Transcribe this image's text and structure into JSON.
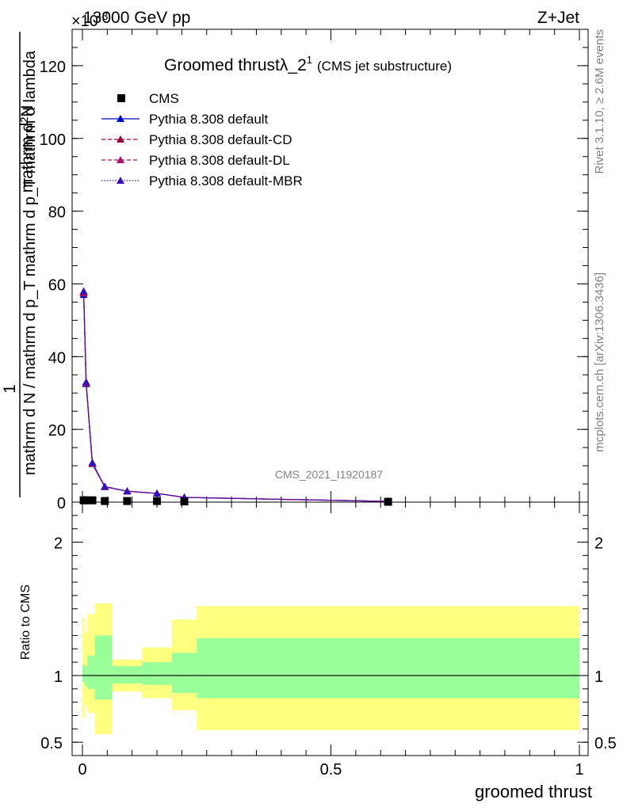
{
  "header": {
    "energy_label": "13000 GeV pp",
    "process_label": "Z+Jet",
    "exponent_label": "×10",
    "exponent_power": "-3"
  },
  "side_texts": {
    "rivet": "Rivet 3.1.10, ≥ 2.6M events",
    "mcplots": "mcplots.cern.ch [arXiv:1306.3436]"
  },
  "watermark": "CMS_2021_I1920187",
  "chart_data": [
    {
      "type": "line",
      "title": "Groomed thrust",
      "title_lambda": "λ_2",
      "title_sup": "1",
      "subtitle": "(CMS jet substructure)",
      "ylabel_num": "mathrm d²N",
      "ylabel_den": "mathrm d N / mathrm d p_T mathrm d p_T mathrm d lambda",
      "ylabel_one": "1",
      "xlim": [
        0,
        1
      ],
      "ylim": [
        0,
        130
      ],
      "yticks": [
        0,
        20,
        40,
        60,
        80,
        100,
        120
      ],
      "ytick_labels": [
        "0",
        "20",
        "40",
        "60",
        "80",
        "100",
        "120"
      ],
      "legend": [
        {
          "label": "CMS",
          "marker": "square",
          "color": "#000000",
          "dash": ""
        },
        {
          "label": "Pythia 8.308 default",
          "marker": "triangle",
          "color": "#0000cc",
          "dash": ""
        },
        {
          "label": "Pythia 8.308 default-CD",
          "marker": "triangle",
          "color": "#990033",
          "dash": "5,3"
        },
        {
          "label": "Pythia 8.308 default-DL",
          "marker": "triangle",
          "color": "#aa1166",
          "dash": "5,3"
        },
        {
          "label": "Pythia 8.308 default-MBR",
          "marker": "triangle",
          "color": "#3311bb",
          "dash": "1.5,2"
        }
      ],
      "cms_x": [
        0.0025,
        0.0075,
        0.02,
        0.045,
        0.09,
        0.15,
        0.205,
        0.615
      ],
      "cms_y": [
        0.5,
        0.5,
        0.5,
        0.3,
        0.3,
        0.3,
        0.2,
        0.1
      ],
      "mc_x": [
        0.0025,
        0.0075,
        0.02,
        0.045,
        0.09,
        0.15,
        0.205,
        0.615
      ],
      "series": [
        {
          "name": "Pythia 8.308 default",
          "values": [
            57.0,
            32.5,
            10.5,
            4.2,
            3.0,
            2.4,
            1.3,
            0.2
          ]
        },
        {
          "name": "Pythia 8.308 default-CD",
          "values": [
            57.8,
            33.0,
            10.8,
            4.3,
            3.0,
            2.4,
            1.3,
            0.2
          ]
        },
        {
          "name": "Pythia 8.308 default-DL",
          "values": [
            57.5,
            32.7,
            10.6,
            4.2,
            3.0,
            2.4,
            1.3,
            0.2
          ]
        },
        {
          "name": "Pythia 8.308 default-MBR",
          "values": [
            58.0,
            33.0,
            10.9,
            4.3,
            3.0,
            2.4,
            1.3,
            0.2
          ]
        }
      ]
    },
    {
      "type": "area",
      "ylabel": "Ratio to CMS",
      "xlabel": "groomed thrust",
      "xlim": [
        0,
        1
      ],
      "ylim": [
        0.4,
        2.3
      ],
      "yticks": [
        0.5,
        1,
        2
      ],
      "ytick_labels": [
        "0.5",
        "1",
        "2"
      ],
      "xticks": [
        0,
        0.5,
        1
      ],
      "xtick_labels": [
        "0",
        "0.5",
        "1"
      ],
      "reference_line": 1,
      "band_edges": [
        0,
        0.005,
        0.01,
        0.025,
        0.06,
        0.12,
        0.18,
        0.23,
        1.0
      ],
      "yellow_band": {
        "color": "#ffff80",
        "low": [
          0.68,
          0.78,
          0.72,
          0.56,
          0.88,
          0.83,
          0.74,
          0.59
        ],
        "high": [
          1.43,
          1.32,
          1.46,
          1.54,
          1.12,
          1.21,
          1.42,
          1.52
        ]
      },
      "green_band": {
        "color": "#99ff99",
        "low": [
          0.95,
          0.92,
          0.9,
          0.82,
          0.94,
          0.93,
          0.87,
          0.83
        ],
        "high": [
          1.08,
          1.07,
          1.15,
          1.3,
          1.07,
          1.1,
          1.17,
          1.28
        ]
      }
    }
  ]
}
